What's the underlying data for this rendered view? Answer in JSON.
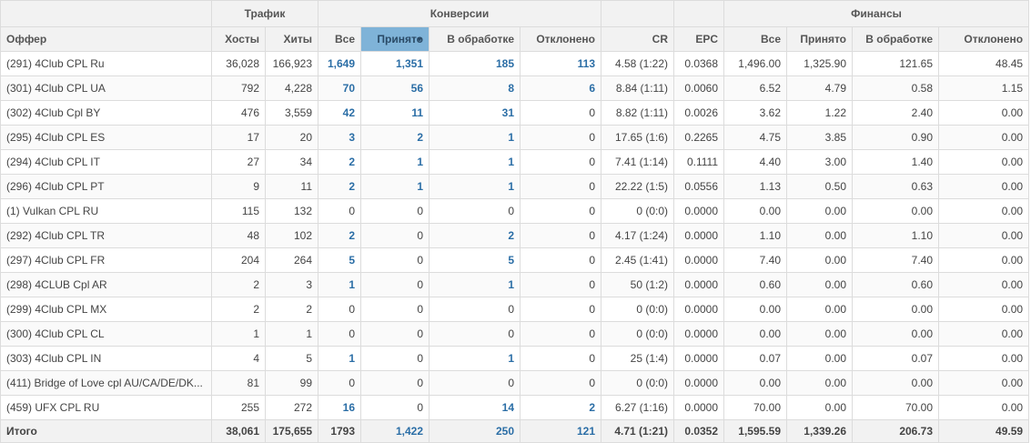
{
  "headers": {
    "groups": {
      "traffic": "Трафик",
      "conversions": "Конверсии",
      "finance": "Финансы"
    },
    "columns": {
      "offer": "Оффер",
      "hosts": "Хосты",
      "hits": "Хиты",
      "conv_all": "Все",
      "conv_accepted": "Принято",
      "conv_processing": "В обработке",
      "conv_rejected": "Отклонено",
      "cr": "CR",
      "epc": "EPC",
      "fin_all": "Все",
      "fin_accepted": "Принято",
      "fin_processing": "В обработке",
      "fin_rejected": "Отклонено"
    },
    "sort_indicator": "▼"
  },
  "rows": [
    [
      "(291) 4Club CPL Ru",
      "36,028",
      "166,923",
      "1,649",
      "1,351",
      "185",
      "113",
      "4.58 (1:22)",
      "0.0368",
      "1,496.00",
      "1,325.90",
      "121.65",
      "48.45"
    ],
    [
      "(301) 4Club CPL UA",
      "792",
      "4,228",
      "70",
      "56",
      "8",
      "6",
      "8.84 (1:11)",
      "0.0060",
      "6.52",
      "4.79",
      "0.58",
      "1.15"
    ],
    [
      "(302) 4Club Cpl BY",
      "476",
      "3,559",
      "42",
      "11",
      "31",
      "0",
      "8.82 (1:11)",
      "0.0026",
      "3.62",
      "1.22",
      "2.40",
      "0.00"
    ],
    [
      "(295) 4Club CPL ES",
      "17",
      "20",
      "3",
      "2",
      "1",
      "0",
      "17.65 (1:6)",
      "0.2265",
      "4.75",
      "3.85",
      "0.90",
      "0.00"
    ],
    [
      "(294) 4Club CPL IT",
      "27",
      "34",
      "2",
      "1",
      "1",
      "0",
      "7.41 (1:14)",
      "0.1111",
      "4.40",
      "3.00",
      "1.40",
      "0.00"
    ],
    [
      "(296) 4Club CPL PT",
      "9",
      "11",
      "2",
      "1",
      "1",
      "0",
      "22.22 (1:5)",
      "0.0556",
      "1.13",
      "0.50",
      "0.63",
      "0.00"
    ],
    [
      "(1) Vulkan CPL RU",
      "115",
      "132",
      "0",
      "0",
      "0",
      "0",
      "0 (0:0)",
      "0.0000",
      "0.00",
      "0.00",
      "0.00",
      "0.00"
    ],
    [
      "(292) 4Club CPL TR",
      "48",
      "102",
      "2",
      "0",
      "2",
      "0",
      "4.17 (1:24)",
      "0.0000",
      "1.10",
      "0.00",
      "1.10",
      "0.00"
    ],
    [
      "(297) 4Club CPL FR",
      "204",
      "264",
      "5",
      "0",
      "5",
      "0",
      "2.45 (1:41)",
      "0.0000",
      "7.40",
      "0.00",
      "7.40",
      "0.00"
    ],
    [
      "(298) 4CLUB Cpl AR",
      "2",
      "3",
      "1",
      "0",
      "1",
      "0",
      "50 (1:2)",
      "0.0000",
      "0.60",
      "0.00",
      "0.60",
      "0.00"
    ],
    [
      "(299) 4Club CPL MX",
      "2",
      "2",
      "0",
      "0",
      "0",
      "0",
      "0 (0:0)",
      "0.0000",
      "0.00",
      "0.00",
      "0.00",
      "0.00"
    ],
    [
      "(300) 4Club CPL CL",
      "1",
      "1",
      "0",
      "0",
      "0",
      "0",
      "0 (0:0)",
      "0.0000",
      "0.00",
      "0.00",
      "0.00",
      "0.00"
    ],
    [
      "(303) 4Club CPL IN",
      "4",
      "5",
      "1",
      "0",
      "1",
      "0",
      "25 (1:4)",
      "0.0000",
      "0.07",
      "0.00",
      "0.07",
      "0.00"
    ],
    [
      "(411) Bridge of Love cpl AU/CA/DE/DK...",
      "81",
      "99",
      "0",
      "0",
      "0",
      "0",
      "0 (0:0)",
      "0.0000",
      "0.00",
      "0.00",
      "0.00",
      "0.00"
    ],
    [
      "(459) UFX CPL RU",
      "255",
      "272",
      "16",
      "0",
      "14",
      "2",
      "6.27 (1:16)",
      "0.0000",
      "70.00",
      "0.00",
      "70.00",
      "0.00"
    ]
  ],
  "totals": [
    "Итого",
    "38,061",
    "175,655",
    "1793",
    "1,422",
    "250",
    "121",
    "4.71 (1:21)",
    "0.0352",
    "1,595.59",
    "1,339.26",
    "206.73",
    "49.59"
  ],
  "colors": {
    "link": "#2b6ea6",
    "sorted_header": "#7fb3d8",
    "header_bg": "#f2f2f2",
    "border": "#dcdcdc"
  }
}
